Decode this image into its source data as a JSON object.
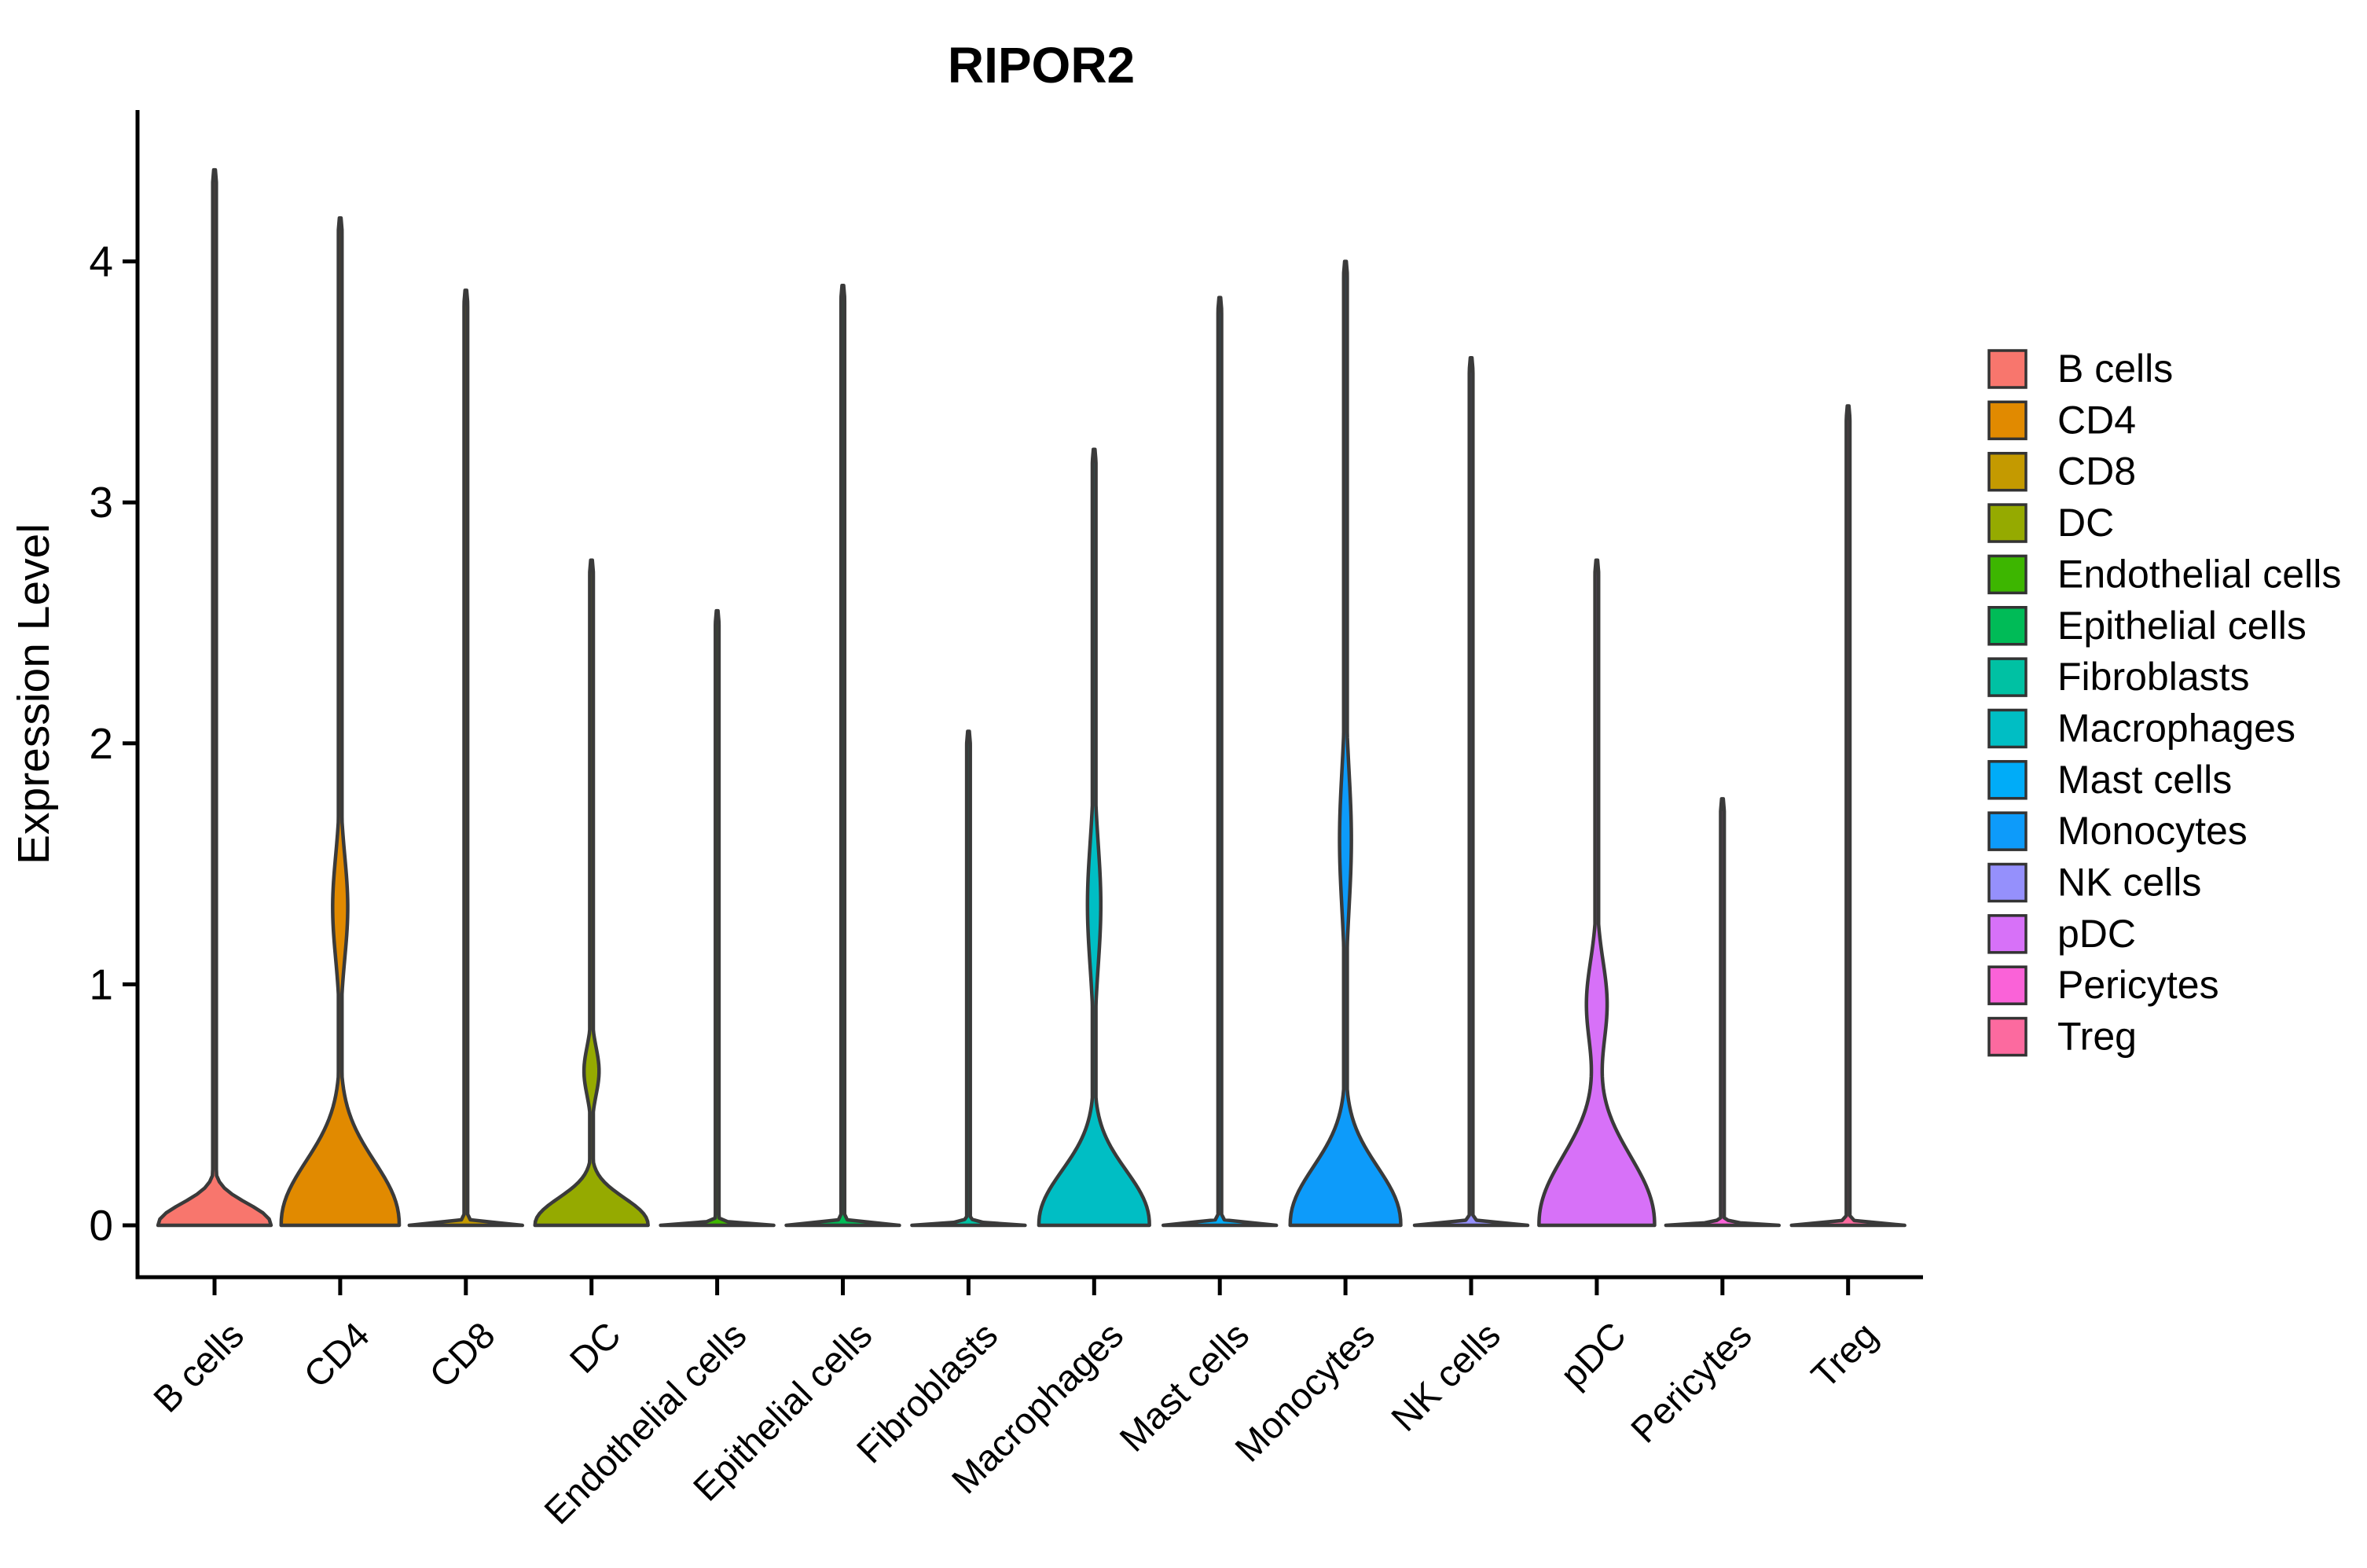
{
  "title": "RIPOR2",
  "y_axis": {
    "label": "Expression Level",
    "ticks": [
      0,
      1,
      2,
      3,
      4
    ]
  },
  "chart_data": {
    "type": "violin",
    "title": "RIPOR2",
    "xlabel": "",
    "ylabel": "Expression Level",
    "ylim": [
      -0.21,
      4.63
    ],
    "yticks": [
      0,
      1,
      2,
      3,
      4
    ],
    "grid": false,
    "legend_position": "right",
    "categories": [
      "B cells",
      "CD4",
      "CD8",
      "DC",
      "Endothelial cells",
      "Epithelial cells",
      "Fibroblasts",
      "Macrophages",
      "Mast cells",
      "Monocytes",
      "NK cells",
      "pDC",
      "Pericytes",
      "Treg"
    ],
    "series": [
      {
        "name": "B cells",
        "color": "#F8766D",
        "max_expression": 4.38,
        "base": {
          "hw": 0.45,
          "sigma": 0.12,
          "power": 2.2
        },
        "bulge": null
      },
      {
        "name": "CD4",
        "color": "#E18A00",
        "max_expression": 4.18,
        "base": {
          "hw": 0.47,
          "sigma": 0.35,
          "power": 2.2
        },
        "bulge": {
          "center": 1.32,
          "spread": 0.3,
          "hw": 0.06
        }
      },
      {
        "name": "CD8",
        "color": "#C49A00",
        "max_expression": 3.88,
        "base": {
          "hw": 0.45,
          "sigma": 0.009,
          "power": 1.0
        },
        "bulge": null
      },
      {
        "name": "DC",
        "color": "#95AA00",
        "max_expression": 2.76,
        "base": {
          "hw": 0.45,
          "sigma": 0.15,
          "power": 2.2
        },
        "bulge": {
          "center": 0.64,
          "spread": 0.14,
          "hw": 0.06
        }
      },
      {
        "name": "Endothelial cells",
        "color": "#3DB600",
        "max_expression": 2.55,
        "base": {
          "hw": 0.45,
          "sigma": 0.009,
          "power": 1.0
        },
        "bulge": null
      },
      {
        "name": "Epithelial cells",
        "color": "#00BB57",
        "max_expression": 3.9,
        "base": {
          "hw": 0.45,
          "sigma": 0.009,
          "power": 1.0
        },
        "bulge": null
      },
      {
        "name": "Fibroblasts",
        "color": "#00C1A3",
        "max_expression": 2.05,
        "base": {
          "hw": 0.45,
          "sigma": 0.009,
          "power": 1.0
        },
        "bulge": null
      },
      {
        "name": "Macrophages",
        "color": "#00BEC4",
        "max_expression": 3.22,
        "base": {
          "hw": 0.44,
          "sigma": 0.3,
          "power": 2.2
        },
        "bulge": {
          "center": 1.33,
          "spread": 0.36,
          "hw": 0.053
        }
      },
      {
        "name": "Mast cells",
        "color": "#00ACF8",
        "max_expression": 3.85,
        "base": {
          "hw": 0.45,
          "sigma": 0.009,
          "power": 1.0
        },
        "bulge": null
      },
      {
        "name": "Monocytes",
        "color": "#0D9BFA",
        "max_expression": 4.0,
        "base": {
          "hw": 0.44,
          "sigma": 0.32,
          "power": 2.2
        },
        "bulge": {
          "center": 1.6,
          "spread": 0.4,
          "hw": 0.047
        }
      },
      {
        "name": "NK cells",
        "color": "#9590FC",
        "max_expression": 3.6,
        "base": {
          "hw": 0.45,
          "sigma": 0.009,
          "power": 1.0
        },
        "bulge": null
      },
      {
        "name": "pDC",
        "color": "#D771F8",
        "max_expression": 2.76,
        "base": {
          "hw": 0.46,
          "sigma": 0.38,
          "power": 2.2
        },
        "bulge": {
          "center": 0.92,
          "spread": 0.25,
          "hw": 0.082
        }
      },
      {
        "name": "Pericytes",
        "color": "#FA62D8",
        "max_expression": 1.77,
        "base": {
          "hw": 0.45,
          "sigma": 0.009,
          "power": 1.0
        },
        "bulge": null
      },
      {
        "name": "Treg",
        "color": "#FC6A9F",
        "max_expression": 3.4,
        "base": {
          "hw": 0.45,
          "sigma": 0.009,
          "power": 1.0
        },
        "bulge": null
      }
    ]
  },
  "style": {
    "violin_outline_color": "#3A3A3A",
    "axis_color": "#000000",
    "legend_swatch_border": "#333333",
    "background": "#FFFFFF"
  }
}
